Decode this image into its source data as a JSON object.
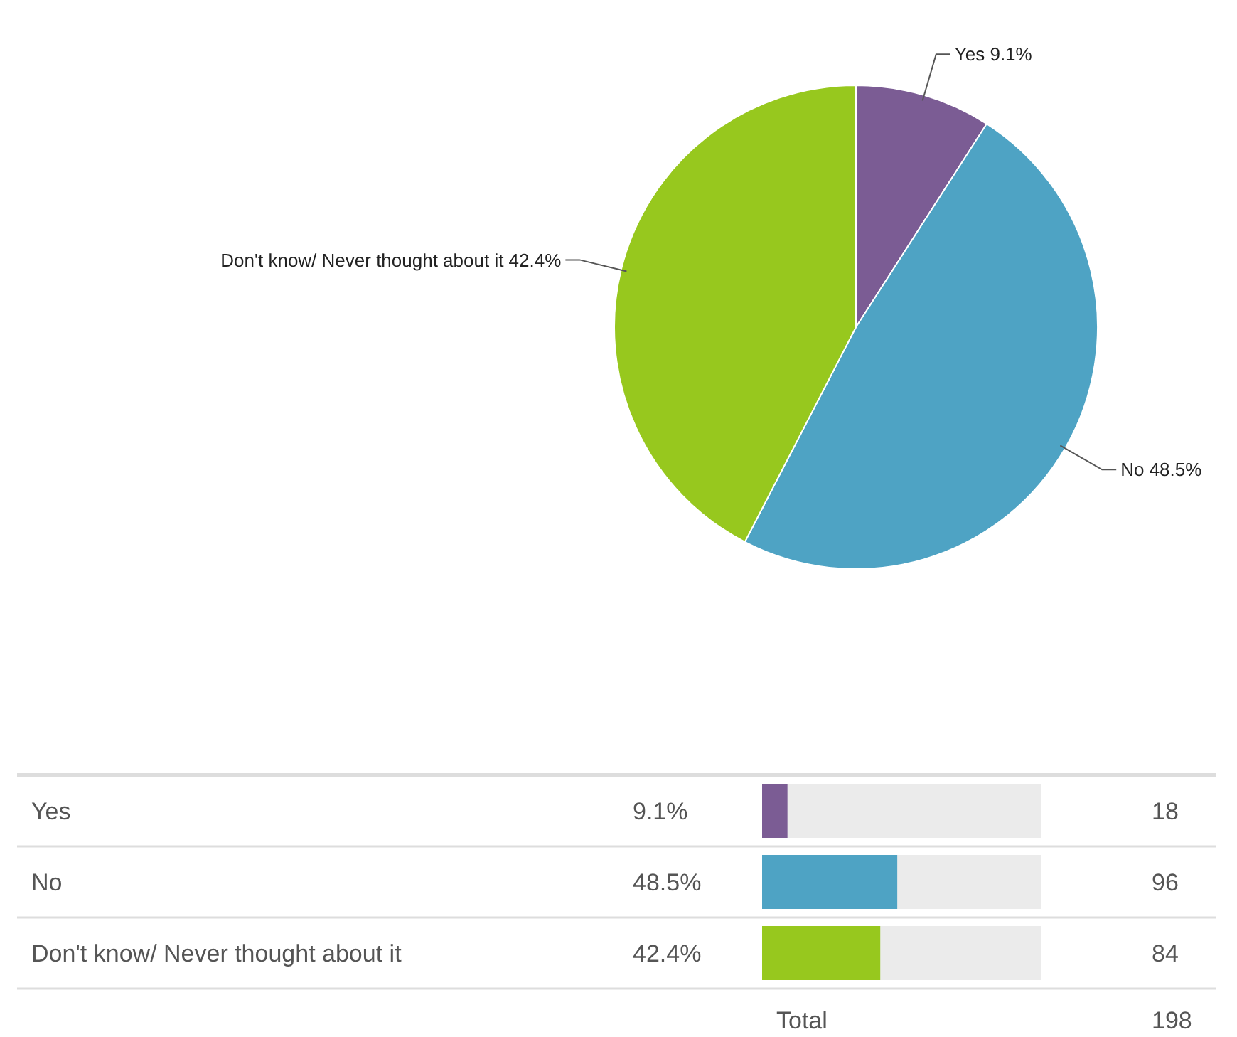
{
  "chart_data": [
    {
      "type": "pie",
      "categories": [
        "Yes",
        "No",
        "Don't know/ Never thought about it"
      ],
      "values": [
        9.1,
        48.5,
        42.4
      ],
      "colors": [
        "#7b5c94",
        "#4ea3c4",
        "#97c81e"
      ],
      "value_labels": [
        "9.1%",
        "48.5%",
        "42.4%"
      ]
    },
    {
      "type": "bar",
      "orientation": "horizontal",
      "categories": [
        "Yes",
        "No",
        "Don't know/ Never thought about it"
      ],
      "values": [
        9.1,
        48.5,
        42.4
      ],
      "colors": [
        "#7b5c94",
        "#4ea3c4",
        "#97c81e"
      ],
      "xlim": [
        0,
        100
      ],
      "value_labels": [
        "9.1%",
        "48.5%",
        "42.4%"
      ],
      "annotations": [
        "18",
        "96",
        "84",
        "Total",
        "198"
      ]
    }
  ]
}
